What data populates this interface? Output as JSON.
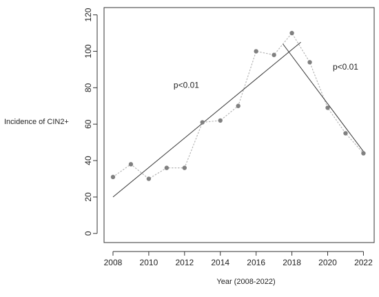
{
  "chart_data": {
    "type": "scatter",
    "x": [
      2008,
      2009,
      2010,
      2011,
      2012,
      2013,
      2014,
      2015,
      2016,
      2017,
      2018,
      2019,
      2020,
      2021,
      2022
    ],
    "y": [
      31,
      38,
      30,
      36,
      36,
      61,
      62,
      70,
      100,
      98,
      110,
      94,
      69,
      55,
      44
    ],
    "xlabel": "Year (2008-2022)",
    "ylabel": "Incidence of CIN2+",
    "xticks": [
      2008,
      2010,
      2012,
      2014,
      2016,
      2018,
      2020,
      2022
    ],
    "yticks": [
      0,
      20,
      40,
      60,
      80,
      100,
      120
    ],
    "xlim": [
      2007.5,
      2022.6
    ],
    "ylim": [
      -5,
      124
    ],
    "connector": "dotted",
    "grid": false,
    "colors": {
      "points": "#808080",
      "connector": "#b5b5b5",
      "trend": "#333333",
      "axis": "#333333"
    },
    "trend_lines": [
      {
        "x": [
          2008,
          2018.5
        ],
        "y": [
          20,
          105
        ]
      },
      {
        "x": [
          2017.5,
          2022
        ],
        "y": [
          104,
          45
        ]
      }
    ],
    "annotations": [
      {
        "text": "p<0.01",
        "x": 2012.1,
        "y": 80
      },
      {
        "text": "p<0.01",
        "x": 2021.0,
        "y": 90
      }
    ]
  }
}
